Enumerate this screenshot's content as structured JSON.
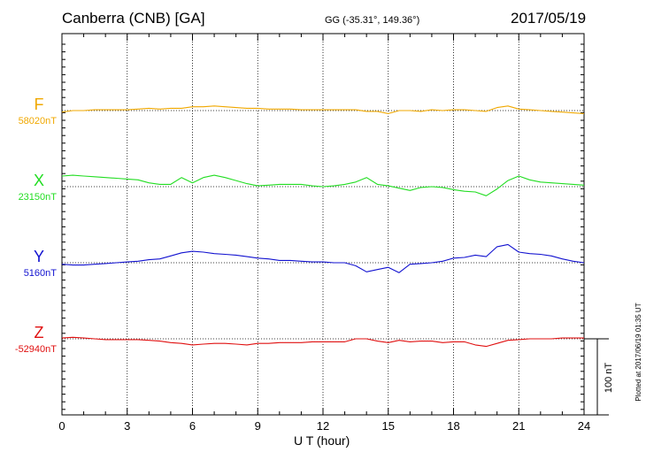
{
  "header": {
    "station": "Canberra (CNB)  [GA]",
    "coords": "GG (-35.31°, 149.36°)",
    "date": "2017/05/19"
  },
  "side_note": "Plotted at 2017/06/19 01:35 UT",
  "scale_label": "100 nT",
  "chart_data": {
    "type": "line",
    "xlabel": "U T (hour)",
    "xlim": [
      0,
      24
    ],
    "xticks": [
      0,
      3,
      6,
      9,
      12,
      15,
      18,
      21,
      24
    ],
    "grid": true,
    "scale_bar_nT": 100,
    "series": [
      {
        "name": "F",
        "baseline_label": "58020nT",
        "baseline_nT": 58020,
        "color": "#f0a800",
        "x": [
          0,
          0.5,
          1,
          1.5,
          2,
          2.5,
          3,
          3.5,
          4,
          4.5,
          5,
          5.5,
          6,
          6.5,
          7,
          7.5,
          8,
          8.5,
          9,
          9.5,
          10,
          10.5,
          11,
          11.5,
          12,
          12.5,
          13,
          13.5,
          14,
          14.5,
          15,
          15.5,
          16,
          16.5,
          17,
          17.5,
          18,
          18.5,
          19,
          19.5,
          20,
          20.5,
          21,
          21.5,
          22,
          22.5,
          23,
          23.5,
          24
        ],
        "offset_nT": [
          -2,
          0,
          0,
          1,
          1,
          1,
          1,
          2,
          3,
          2,
          3,
          3,
          5,
          5,
          6,
          5,
          4,
          3,
          3,
          2,
          2,
          2,
          1,
          1,
          1,
          1,
          1,
          1,
          -1,
          -1,
          -4,
          0,
          0,
          -1,
          1,
          0,
          1,
          1,
          0,
          -1,
          4,
          6,
          2,
          1,
          0,
          -1,
          -2,
          -3,
          -4
        ]
      },
      {
        "name": "X",
        "baseline_label": "23150nT",
        "baseline_nT": 23150,
        "color": "#22dd22",
        "x": [
          0,
          0.5,
          1,
          1.5,
          2,
          2.5,
          3,
          3.5,
          4,
          4.5,
          5,
          5.5,
          6,
          6.5,
          7,
          7.5,
          8,
          8.5,
          9,
          9.5,
          10,
          10.5,
          11,
          11.5,
          12,
          12.5,
          13,
          13.5,
          14,
          14.5,
          15,
          15.5,
          16,
          16.5,
          17,
          17.5,
          18,
          18.5,
          19,
          19.5,
          20,
          20.5,
          21,
          21.5,
          22,
          22.5,
          23,
          23.5,
          24
        ],
        "offset_nT": [
          14,
          15,
          14,
          13,
          12,
          11,
          10,
          9,
          5,
          3,
          3,
          12,
          5,
          12,
          15,
          12,
          8,
          4,
          1,
          2,
          3,
          3,
          3,
          1,
          0,
          1,
          3,
          6,
          12,
          3,
          1,
          -2,
          -5,
          -1,
          0,
          -1,
          -4,
          -6,
          -7,
          -12,
          -3,
          8,
          14,
          9,
          6,
          5,
          4,
          3,
          2
        ]
      },
      {
        "name": "Y",
        "baseline_label": "5160nT",
        "baseline_nT": 5160,
        "color": "#1212d0",
        "x": [
          0,
          0.5,
          1,
          1.5,
          2,
          2.5,
          3,
          3.5,
          4,
          4.5,
          5,
          5.5,
          6,
          6.5,
          7,
          7.5,
          8,
          8.5,
          9,
          9.5,
          10,
          10.5,
          11,
          11.5,
          12,
          12.5,
          13,
          13.5,
          14,
          14.5,
          15,
          15.5,
          16,
          16.5,
          17,
          17.5,
          18,
          18.5,
          19,
          19.5,
          20,
          20.5,
          21,
          21.5,
          22,
          22.5,
          23,
          23.5,
          24
        ],
        "offset_nT": [
          -2,
          -3,
          -3,
          -2,
          -1,
          0,
          1,
          2,
          4,
          5,
          9,
          13,
          15,
          14,
          12,
          11,
          10,
          8,
          6,
          5,
          3,
          3,
          2,
          1,
          1,
          0,
          0,
          -4,
          -12,
          -9,
          -6,
          -13,
          -2,
          -1,
          0,
          2,
          6,
          7,
          10,
          8,
          21,
          24,
          14,
          12,
          11,
          9,
          5,
          2,
          0
        ]
      },
      {
        "name": "Z",
        "baseline_label": "-52940nT",
        "baseline_nT": -52940,
        "color": "#e01010",
        "x": [
          0,
          0.5,
          1,
          1.5,
          2,
          2.5,
          3,
          3.5,
          4,
          4.5,
          5,
          5.5,
          6,
          6.5,
          7,
          7.5,
          8,
          8.5,
          9,
          9.5,
          10,
          10.5,
          11,
          11.5,
          12,
          12.5,
          13,
          13.5,
          14,
          14.5,
          15,
          15.5,
          16,
          16.5,
          17,
          17.5,
          18,
          18.5,
          19,
          19.5,
          20,
          20.5,
          21,
          21.5,
          22,
          22.5,
          23,
          23.5,
          24
        ],
        "offset_nT": [
          1,
          2,
          1,
          0,
          -1,
          -1,
          -1,
          -1,
          -2,
          -3,
          -5,
          -6,
          -8,
          -7,
          -6,
          -6,
          -7,
          -8,
          -6,
          -6,
          -5,
          -5,
          -5,
          -4,
          -4,
          -4,
          -4,
          0,
          0,
          -3,
          -5,
          -2,
          -4,
          -3,
          -3,
          -5,
          -4,
          -4,
          -8,
          -10,
          -6,
          -2,
          -1,
          0,
          0,
          0,
          1,
          1,
          1
        ]
      }
    ]
  }
}
